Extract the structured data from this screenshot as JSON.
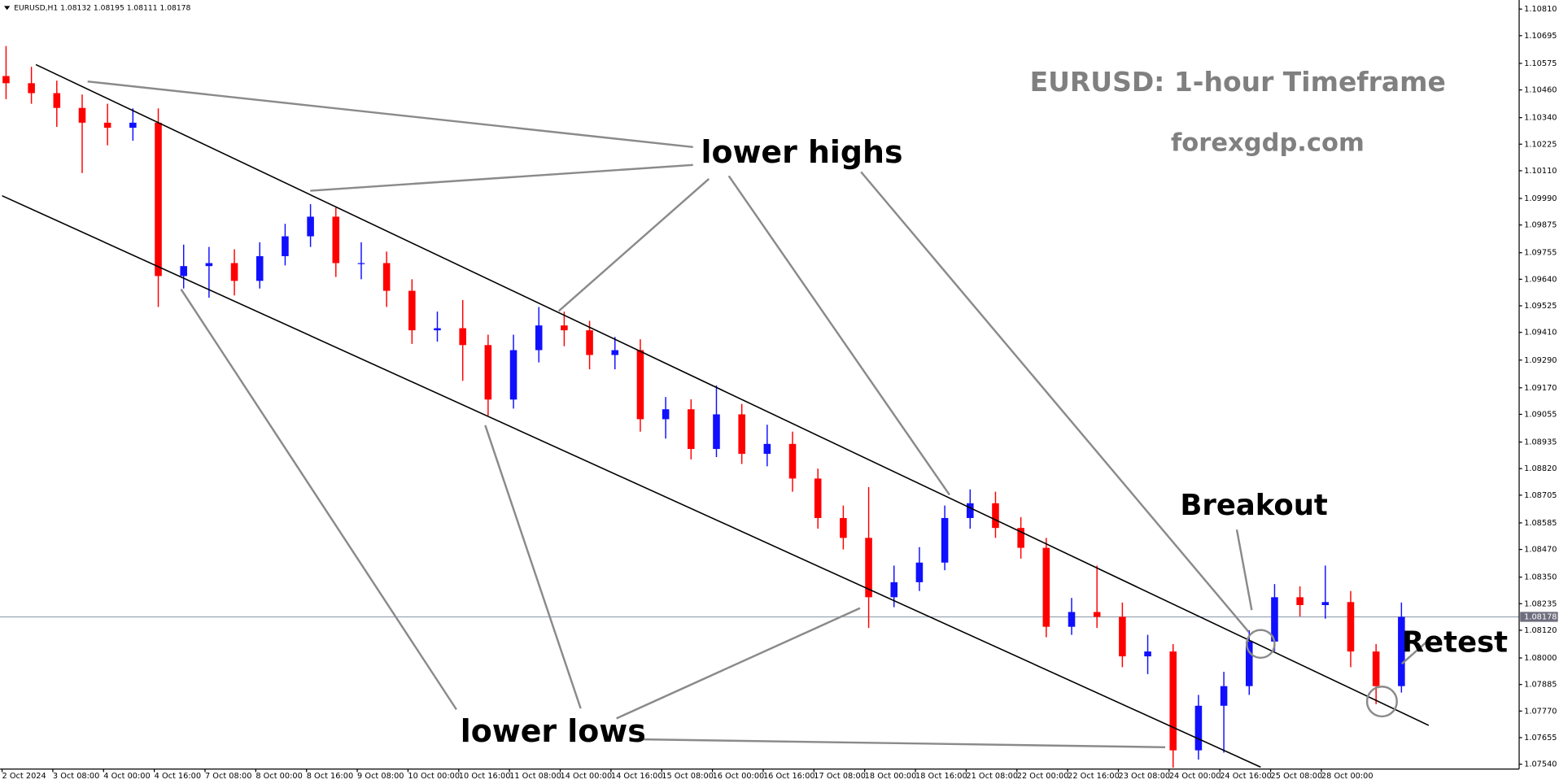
{
  "chart_data": {
    "type": "candlestick",
    "header": "EURUSD,H1  1.08132 1.08195 1.08111 1.08178",
    "title": "EURUSD: 1-hour Timeframe",
    "subtitle": "forexgdp.com",
    "annotations": [
      "lower highs",
      "lower lows",
      "Breakout",
      "Retest"
    ],
    "up_color": "#1010ff",
    "down_color": "#ff0000",
    "last_price": 1.08178,
    "ylim": [
      1.0752,
      1.1083
    ],
    "yticks": [
      {
        "value": 1.1081,
        "label": "1.10810"
      },
      1.10695,
      1.10575,
      {
        "value": 1.1046,
        "label": "1.10460"
      },
      {
        "value": 1.1034,
        "label": "1.10340"
      },
      1.10225,
      {
        "value": 1.1011,
        "label": "1.10110"
      },
      {
        "value": 1.0999,
        "label": "1.09990"
      },
      1.09875,
      1.09755,
      {
        "value": 1.0964,
        "label": "1.09640"
      },
      1.09525,
      {
        "value": 1.0941,
        "label": "1.09410"
      },
      {
        "value": 1.0929,
        "label": "1.09290"
      },
      {
        "value": 1.0917,
        "label": "1.09170"
      },
      1.09055,
      1.08935,
      {
        "value": 1.0882,
        "label": "1.08820"
      },
      1.08705,
      1.08585,
      {
        "value": 1.0847,
        "label": "1.08470"
      },
      {
        "value": 1.0835,
        "label": "1.08350"
      },
      1.08235,
      {
        "value": 1.0812,
        "label": "1.08120"
      },
      {
        "value": 1.08,
        "label": "1.08000"
      },
      1.07885,
      {
        "value": 1.0777,
        "label": "1.07770"
      },
      1.07655,
      {
        "value": 1.0754,
        "label": "1.07540"
      }
    ],
    "categories": [
      "2 Oct 2024",
      null,
      "3 Oct 08:00",
      null,
      "4 Oct 00:00",
      null,
      "4 Oct 16:00",
      null,
      "7 Oct 08:00",
      null,
      "8 Oct 00:00",
      null,
      "8 Oct 16:00",
      null,
      "9 Oct 08:00",
      null,
      "10 Oct 00:00",
      null,
      "10 Oct 16:00",
      null,
      "11 Oct 08:00",
      null,
      "14 Oct 00:00",
      null,
      "14 Oct 16:00",
      null,
      "15 Oct 08:00",
      null,
      "16 Oct 00:00",
      null,
      "16 Oct 16:00",
      null,
      "17 Oct 08:00",
      null,
      "18 Oct 00:00",
      null,
      "18 Oct 16:00",
      null,
      "21 Oct 08:00",
      null,
      "22 Oct 00:00",
      null,
      "22 Oct 16:00",
      null,
      "23 Oct 08:00",
      null,
      "24 Oct 00:00",
      null,
      "24 Oct 16:00",
      null,
      "25 Oct 08:00",
      null,
      "28 Oct 00:00",
      null,
      null,
      null
    ],
    "open": [
      1.1052,
      1.10489,
      1.10446,
      1.10382,
      1.10318,
      1.10296,
      1.10318,
      1.09654,
      1.09697,
      1.0971,
      1.09633,
      1.0974,
      1.09826,
      1.09911,
      1.0971,
      1.0971,
      1.0959,
      1.09419,
      1.09428,
      1.09355,
      1.09119,
      1.09333,
      1.0944,
      1.09419,
      1.09312,
      1.09333,
      1.09034,
      1.09077,
      1.08905,
      1.09055,
      1.08884,
      1.08927,
      1.08777,
      1.08606,
      1.0852,
      1.08263,
      1.08328,
      1.08413,
      1.08606,
      1.0867,
      1.08563,
      1.08477,
      1.08135,
      1.08199,
      1.08178,
      1.08007,
      1.08028,
      1.076,
      1.07793,
      1.07878,
      1.08071,
      1.08263,
      1.08229,
      1.08242,
      1.08028,
      1.07878
    ],
    "high": [
      1.1065,
      1.1056,
      1.105,
      1.1044,
      1.104,
      1.1038,
      1.1038,
      1.0979,
      1.0978,
      1.0977,
      1.098,
      1.0988,
      1.09965,
      1.0995,
      1.098,
      1.0976,
      1.0964,
      1.095,
      1.0955,
      1.094,
      1.094,
      1.0952,
      1.095,
      1.0946,
      1.0939,
      1.0938,
      1.0913,
      1.0912,
      1.0918,
      1.091,
      1.0901,
      1.0898,
      1.0882,
      1.0866,
      1.0874,
      1.084,
      1.0848,
      1.0866,
      1.0873,
      1.0872,
      1.0861,
      1.0852,
      1.0826,
      1.084,
      1.0824,
      1.081,
      1.0806,
      1.0784,
      1.0794,
      1.0812,
      1.0832,
      1.0831,
      1.084,
      1.0829,
      1.0806,
      1.0824
    ],
    "low": [
      1.1042,
      1.104,
      1.103,
      1.101,
      1.1022,
      1.1024,
      1.0952,
      1.096,
      1.0956,
      1.0957,
      1.096,
      1.097,
      1.0978,
      1.0965,
      1.0964,
      1.0952,
      1.0936,
      1.0937,
      1.092,
      1.0905,
      1.0908,
      1.0928,
      1.0935,
      1.0925,
      1.0925,
      1.0898,
      1.0895,
      1.0886,
      1.0887,
      1.0884,
      1.0883,
      1.0872,
      1.0856,
      1.0847,
      1.0813,
      1.0822,
      1.0829,
      1.0838,
      1.0856,
      1.0852,
      1.0843,
      1.0809,
      1.081,
      1.0813,
      1.0796,
      1.0793,
      1.07525,
      1.0756,
      1.0759,
      1.0784,
      1.0803,
      1.0818,
      1.0817,
      1.0796,
      1.078,
      1.0785
    ],
    "close": [
      1.10489,
      1.10446,
      1.10382,
      1.10318,
      1.10296,
      1.10318,
      1.09654,
      1.09697,
      1.0971,
      1.09633,
      1.0974,
      1.09826,
      1.09911,
      1.0971,
      1.0971,
      1.0959,
      1.09419,
      1.09428,
      1.09355,
      1.09119,
      1.09333,
      1.0944,
      1.09419,
      1.09312,
      1.09333,
      1.09034,
      1.09077,
      1.08905,
      1.09055,
      1.08884,
      1.08927,
      1.08777,
      1.08606,
      1.0852,
      1.08263,
      1.08328,
      1.08413,
      1.08606,
      1.0867,
      1.08563,
      1.08477,
      1.08135,
      1.08199,
      1.08178,
      1.08007,
      1.08028,
      1.076,
      1.07793,
      1.07878,
      1.08071,
      1.08263,
      1.08229,
      1.08242,
      1.08028,
      1.07878,
      1.08178
    ]
  }
}
